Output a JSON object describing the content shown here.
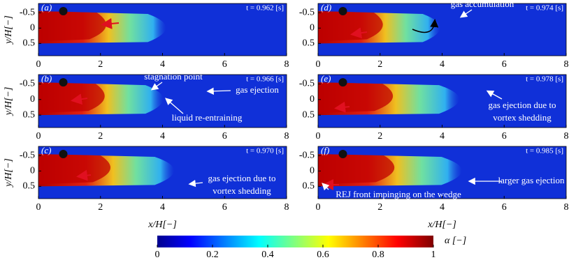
{
  "chart_data": [
    {
      "type": "heatmap",
      "label": "(a)",
      "time": "t = 0.962 [s]",
      "annotations": [],
      "xlim": [
        0,
        8
      ],
      "xticks": [
        0,
        2,
        4,
        6,
        8
      ],
      "ylim": [
        -0.8,
        0.9
      ],
      "yticks": [
        -0.5,
        0,
        0.5
      ],
      "ylabel": "y/H[−]"
    },
    {
      "type": "heatmap",
      "label": "(d)",
      "time": "t = 0.974 [s]",
      "annotations": [
        "gas accumulation"
      ],
      "xlim": [
        0,
        8
      ],
      "xticks": [
        0,
        2,
        4,
        6,
        8
      ],
      "ylim": [
        -0.8,
        0.9
      ],
      "yticks": [
        -0.5,
        0,
        0.5
      ]
    },
    {
      "type": "heatmap",
      "label": "(b)",
      "time": "t = 0.966 [s]",
      "annotations": [
        "stagnation point",
        "gas ejection",
        "liquid re-entraining"
      ],
      "xlim": [
        0,
        8
      ],
      "xticks": [
        0,
        2,
        4,
        6,
        8
      ],
      "ylim": [
        -0.8,
        0.9
      ],
      "yticks": [
        -0.5,
        0,
        0.5
      ],
      "ylabel": "y/H[−]"
    },
    {
      "type": "heatmap",
      "label": "(e)",
      "time": "t = 0.978 [s]",
      "annotations": [
        "gas ejection due to",
        "vortex shedding"
      ],
      "xlim": [
        0,
        8
      ],
      "xticks": [
        0,
        2,
        4,
        6,
        8
      ],
      "ylim": [
        -0.8,
        0.9
      ],
      "yticks": [
        -0.5,
        0,
        0.5
      ]
    },
    {
      "type": "heatmap",
      "label": "(c)",
      "time": "t = 0.970 [s]",
      "annotations": [
        "gas ejection due to",
        "vortex shedding"
      ],
      "xlim": [
        0,
        8
      ],
      "xticks": [
        0,
        2,
        4,
        6,
        8
      ],
      "ylim": [
        -0.8,
        0.9
      ],
      "yticks": [
        -0.5,
        0,
        0.5
      ],
      "ylabel": "y/H[−]",
      "xlabel": "x/H[−]"
    },
    {
      "type": "heatmap",
      "label": "(f)",
      "time": "t = 0.985 [s]",
      "annotations": [
        "larger gas ejection",
        "REJ front impinging on the wedge"
      ],
      "xlim": [
        0,
        8
      ],
      "xticks": [
        0,
        2,
        4,
        6,
        8
      ],
      "ylim": [
        -0.8,
        0.9
      ],
      "yticks": [
        -0.5,
        0,
        0.5
      ],
      "xlabel": "x/H[−]"
    }
  ],
  "colorbar": {
    "label": "α [−]",
    "lim": [
      0,
      1
    ],
    "ticks": [
      0,
      0.2,
      0.4,
      0.6,
      0.8,
      1
    ]
  }
}
